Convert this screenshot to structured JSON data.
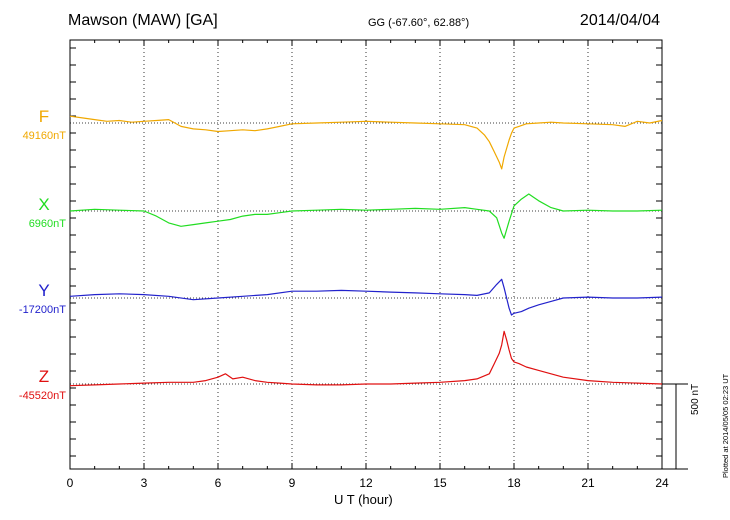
{
  "header": {
    "station": "Mawson (MAW)  [GA]",
    "coords": "GG (-67.60°,  62.88°)",
    "date": "2014/04/04"
  },
  "footer_text": "Plotted at 2014/05/05 02:23 UT",
  "chart_data": {
    "type": "line",
    "xlabel": "U T (hour)",
    "x_ticks": [
      "0",
      "3",
      "6",
      "9",
      "12",
      "15",
      "18",
      "21",
      "24"
    ],
    "xlim": [
      0,
      24
    ],
    "grid": true,
    "scale_bar_label": "500 nT",
    "scale_bar_nT": 500,
    "series": [
      {
        "name": "F",
        "baseline_label": "49160nT",
        "color": "#f0a800",
        "x": [
          0,
          0.5,
          1,
          1.5,
          2,
          2.5,
          3,
          3.5,
          4,
          4.5,
          5,
          5.5,
          6,
          6.5,
          7,
          7.5,
          8,
          8.5,
          9,
          10,
          11,
          12,
          13,
          14,
          15,
          16,
          16.5,
          16.8,
          17,
          17.2,
          17.4,
          17.5,
          17.6,
          17.7,
          17.8,
          17.9,
          18,
          18.2,
          18.5,
          19,
          19.5,
          20,
          21,
          22,
          22.5,
          23,
          23.5,
          24
        ],
        "y": [
          40,
          30,
          20,
          10,
          15,
          5,
          10,
          15,
          20,
          -20,
          -35,
          -40,
          -50,
          -45,
          -40,
          -45,
          -35,
          -20,
          -5,
          0,
          5,
          10,
          5,
          0,
          -5,
          -10,
          -30,
          -70,
          -110,
          -170,
          -230,
          -270,
          -200,
          -150,
          -100,
          -60,
          -30,
          -20,
          -5,
          0,
          5,
          0,
          -5,
          -10,
          -20,
          10,
          0,
          15
        ]
      },
      {
        "name": "X",
        "baseline_label": "6960nT",
        "color": "#22dd22",
        "x": [
          0,
          1,
          2,
          3,
          3.5,
          4,
          4.5,
          5,
          5.5,
          6,
          6.5,
          7,
          7.5,
          8,
          8.5,
          9,
          10,
          11,
          12,
          13,
          14,
          15,
          16,
          16.5,
          17,
          17.3,
          17.5,
          17.6,
          17.7,
          17.8,
          18,
          18.3,
          18.6,
          18.8,
          19,
          19.5,
          20,
          21,
          22,
          23,
          24
        ],
        "y": [
          0,
          10,
          5,
          0,
          -30,
          -70,
          -90,
          -80,
          -70,
          -60,
          -50,
          -30,
          -20,
          -20,
          -10,
          0,
          5,
          10,
          5,
          10,
          15,
          10,
          20,
          10,
          0,
          -40,
          -130,
          -160,
          -110,
          -60,
          30,
          70,
          100,
          80,
          60,
          20,
          0,
          5,
          0,
          0,
          5
        ]
      },
      {
        "name": "Y",
        "baseline_label": "-17200nT",
        "color": "#2222cc",
        "x": [
          0,
          1,
          2,
          3,
          4,
          5,
          6,
          7,
          8,
          9,
          10,
          11,
          12,
          13,
          14,
          15,
          16,
          16.5,
          17,
          17.3,
          17.5,
          17.6,
          17.7,
          17.8,
          17.9,
          18,
          18.3,
          18.6,
          19,
          19.5,
          20,
          21,
          22,
          23,
          24
        ],
        "y": [
          10,
          20,
          25,
          20,
          10,
          -10,
          0,
          10,
          20,
          40,
          40,
          45,
          40,
          35,
          30,
          25,
          20,
          15,
          30,
          80,
          110,
          60,
          0,
          -60,
          -100,
          -90,
          -80,
          -60,
          -40,
          -20,
          0,
          5,
          0,
          0,
          5
        ]
      },
      {
        "name": "Z",
        "baseline_label": "-45520nT",
        "color": "#e01010",
        "x": [
          0,
          1,
          2,
          3,
          4,
          5,
          5.5,
          6,
          6.3,
          6.6,
          7,
          7.5,
          8,
          8.5,
          9,
          10,
          11,
          12,
          13,
          14,
          15,
          16,
          16.5,
          17,
          17.2,
          17.4,
          17.5,
          17.6,
          17.7,
          17.8,
          17.9,
          18,
          18.2,
          18.5,
          19,
          19.5,
          20,
          21,
          22,
          23,
          24
        ],
        "y": [
          -10,
          -5,
          0,
          5,
          10,
          10,
          20,
          40,
          60,
          30,
          40,
          20,
          10,
          5,
          0,
          -5,
          -5,
          0,
          0,
          5,
          10,
          20,
          30,
          60,
          120,
          180,
          230,
          310,
          260,
          200,
          150,
          130,
          120,
          100,
          80,
          60,
          40,
          20,
          10,
          5,
          0
        ]
      }
    ]
  }
}
